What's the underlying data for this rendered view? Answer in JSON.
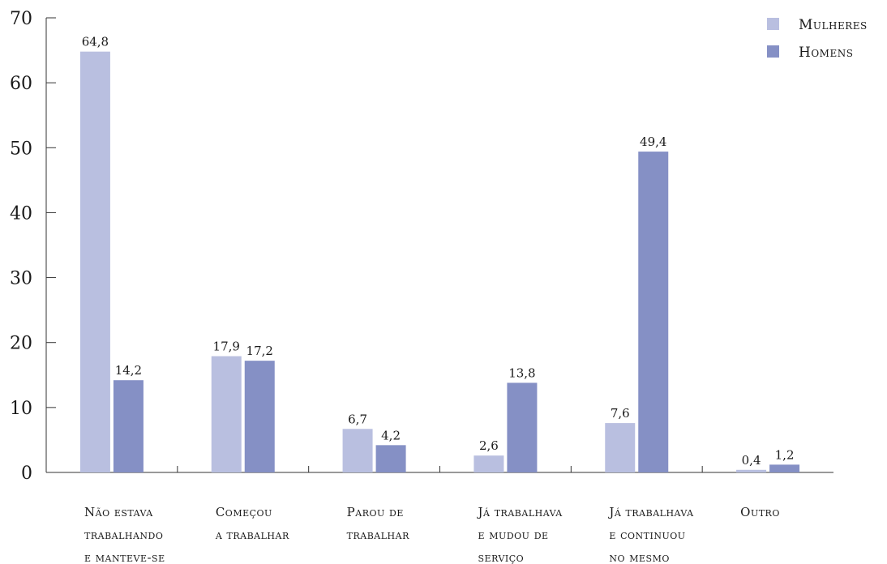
{
  "chart_data": {
    "type": "bar",
    "categories": [
      [
        "Não estava",
        "trabalhando",
        "e manteve-se"
      ],
      [
        "Começou",
        "a trabalhar"
      ],
      [
        "Parou de",
        "trabalhar"
      ],
      [
        "Já trabalhava",
        "e mudou de",
        "serviço"
      ],
      [
        "Já trabalhava",
        "e continuou",
        "no mesmo"
      ],
      [
        "Outro"
      ]
    ],
    "series": [
      {
        "name": "Mulheres",
        "color": "#b9bfe0",
        "values": [
          64.8,
          17.9,
          6.7,
          2.6,
          7.6,
          0.4
        ],
        "labels": [
          "64,8",
          "17,9",
          "6,7",
          "2,6",
          "7,6",
          "0,4"
        ]
      },
      {
        "name": "Homens",
        "color": "#8590c5",
        "values": [
          14.2,
          17.2,
          4.2,
          13.8,
          49.4,
          1.2
        ],
        "labels": [
          "14,2",
          "17,2",
          "4,2",
          "13,8",
          "49,4",
          "1,2"
        ]
      }
    ],
    "ylim": [
      0,
      70
    ],
    "yticks": [
      0,
      10,
      20,
      30,
      40,
      50,
      60,
      70
    ],
    "ytick_labels": [
      "0",
      "10",
      "20",
      "30",
      "40",
      "50",
      "60",
      "70"
    ],
    "legend_position": "top-right",
    "grid": false
  }
}
